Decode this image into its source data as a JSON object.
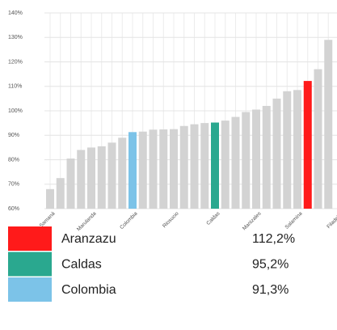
{
  "chart_data": {
    "type": "bar",
    "categories": [
      "Samaná",
      null,
      null,
      null,
      "Marulanda",
      null,
      null,
      null,
      "Colombia",
      null,
      null,
      null,
      "Riosucio",
      null,
      null,
      null,
      "Caldas",
      null,
      null,
      null,
      "Manizales",
      null,
      null,
      null,
      "Salamina",
      null,
      null,
      null,
      "Filadelfia"
    ],
    "values": [
      68,
      72.5,
      80.5,
      84,
      85,
      85.5,
      87,
      89,
      91.3,
      91.5,
      92.3,
      92.4,
      92.5,
      93.8,
      94.5,
      95,
      95.2,
      96,
      97.5,
      99.5,
      100.5,
      102,
      105,
      108,
      108.5,
      112.2,
      117,
      129,
      null
    ],
    "colors": [
      "#d3d3d3",
      "#d3d3d3",
      "#d3d3d3",
      "#d3d3d3",
      "#d3d3d3",
      "#d3d3d3",
      "#d3d3d3",
      "#d3d3d3",
      "#7cc3e8",
      "#d3d3d3",
      "#d3d3d3",
      "#d3d3d3",
      "#d3d3d3",
      "#d3d3d3",
      "#d3d3d3",
      "#d3d3d3",
      "#2aa88f",
      "#d3d3d3",
      "#d3d3d3",
      "#d3d3d3",
      "#d3d3d3",
      "#d3d3d3",
      "#d3d3d3",
      "#d3d3d3",
      "#d3d3d3",
      "#ff1a1a",
      "#d3d3d3",
      "#d3d3d3",
      "#d3d3d3"
    ],
    "ylim": [
      60,
      140
    ],
    "yticks": [
      {
        "value": 60,
        "label": "60%"
      },
      {
        "value": 70,
        "label": "70%"
      },
      {
        "value": 80,
        "label": "80%"
      },
      {
        "value": 90,
        "label": "90%"
      },
      {
        "value": 100,
        "label": "100%"
      },
      {
        "value": 110,
        "label": "110%"
      },
      {
        "value": 120,
        "label": "120%"
      },
      {
        "value": 130,
        "label": "130%"
      },
      {
        "value": 140,
        "label": "140%"
      }
    ],
    "grid": true,
    "highlights": [
      {
        "name": "Aranzazu",
        "color": "#ff1a1a",
        "value": 112.2,
        "label": "112,2%"
      },
      {
        "name": "Caldas",
        "color": "#2aa88f",
        "value": 95.2,
        "label": "95,2%"
      },
      {
        "name": "Colombia",
        "color": "#7cc3e8",
        "value": 91.3,
        "label": "91,3%"
      }
    ]
  }
}
